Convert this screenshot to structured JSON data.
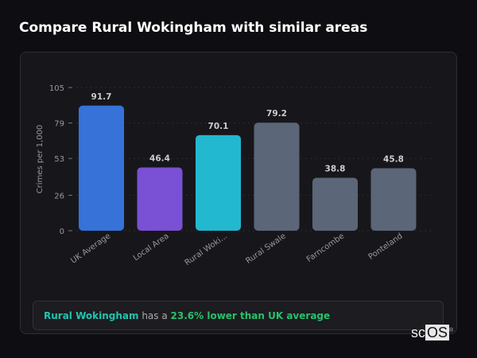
{
  "title": "Compare Rural Wokingham with similar areas",
  "chart_data": {
    "type": "bar",
    "categories": [
      "UK Average",
      "Local Area",
      "Rural Woki...",
      "Rural Swale",
      "Farncombe",
      "Ponteland"
    ],
    "values": [
      91.7,
      46.4,
      70.1,
      79.2,
      38.8,
      45.8
    ],
    "value_labels": [
      "91.7",
      "46.4",
      "70.1",
      "79.2",
      "38.8",
      "45.8"
    ],
    "colors": [
      "#3672d8",
      "#7a50d4",
      "#22b8cf",
      "#5b6678",
      "#5b6678",
      "#5b6678"
    ],
    "ylabel": "Crimes per 1,000",
    "xlabel": "",
    "ylim": [
      0,
      105
    ],
    "yticks": [
      0,
      26,
      53,
      79,
      105
    ],
    "grid": true,
    "legend": "none"
  },
  "summary": {
    "area": "Rural Wokingham",
    "middle": " has a ",
    "comparison": "23.6% lower than UK average"
  },
  "logo": {
    "text_a": "sc",
    "text_b": "OS",
    "mark": "®"
  }
}
